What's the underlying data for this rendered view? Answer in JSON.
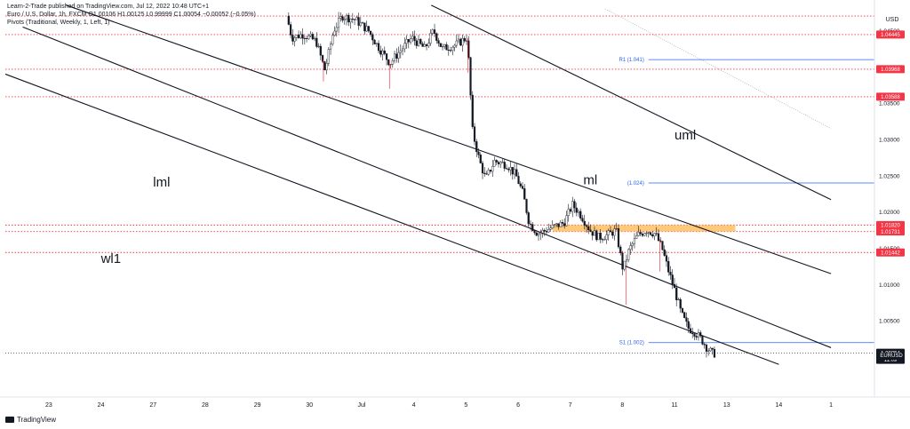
{
  "header": {
    "publish_line": "Learn-2-Trade published on TradingView.com, Jul 12, 2022 10:48 UTC+1",
    "symbol_line": "Euro / U.S. Dollar, 1h, FXCM  O1.00106  H1.00125  L0.99999  C1.00054  −0.00052 (−0.05%)",
    "indicator_line": "Pivots (Traditional, Weekly, 1, Left, 1)"
  },
  "footer": {
    "brand": "TradingView"
  },
  "chart_data": {
    "type": "candlestick",
    "symbol": "EURUSD",
    "timeframe": "1h",
    "y_axis": {
      "unit": "USD",
      "range": [
        0.9945,
        1.0475
      ],
      "ticks": [
        1.045,
        1.035,
        1.03,
        1.025,
        1.02,
        1.015,
        1.01,
        1.005,
        0.9995
      ],
      "tick_labels": [
        "1.04500",
        "1.03500",
        "1.03000",
        "1.02500",
        "1.02000",
        "1.01500",
        "1.01000",
        "1.00500",
        "0.99950"
      ]
    },
    "x_axis": {
      "range": [
        -5,
        95
      ],
      "ticks": [
        {
          "t": 0,
          "label": "23"
        },
        {
          "t": 6,
          "label": "24"
        },
        {
          "t": 12,
          "label": "27"
        },
        {
          "t": 18,
          "label": "28"
        },
        {
          "t": 24,
          "label": "29"
        },
        {
          "t": 30,
          "label": "30"
        },
        {
          "t": 36,
          "label": "Jul"
        },
        {
          "t": 42,
          "label": "4"
        },
        {
          "t": 48,
          "label": "5"
        },
        {
          "t": 54,
          "label": "6"
        },
        {
          "t": 60,
          "label": "7"
        },
        {
          "t": 66,
          "label": "8"
        },
        {
          "t": 72,
          "label": "11"
        },
        {
          "t": 78,
          "label": "13"
        },
        {
          "t": 84,
          "label": "14"
        },
        {
          "t": 90,
          "label": "1"
        }
      ]
    },
    "horizontal_levels": [
      {
        "value": 1.04445,
        "label": "1.04445",
        "color": "#f23645",
        "style": "dotted"
      },
      {
        "value": 1.03968,
        "label": "1.03968",
        "color": "#f23645",
        "style": "dotted"
      },
      {
        "value": 1.03588,
        "label": "1.03588",
        "color": "#f23645",
        "style": "dotted"
      },
      {
        "value": 1.0182,
        "label": "1.01820",
        "color": "#f23645",
        "style": "dotted"
      },
      {
        "value": 1.01731,
        "label": "1.01731",
        "color": "#f23645",
        "style": "dotted"
      },
      {
        "value": 1.01442,
        "label": "1.01442",
        "color": "#f23645",
        "style": "dotted"
      },
      {
        "value": 1.047,
        "label": "",
        "color": "#f23645",
        "style": "dotted"
      }
    ],
    "pivots": [
      {
        "name": "R1 (1.041)",
        "value": 1.041
      },
      {
        "name": "(1.024)",
        "value": 1.024
      },
      {
        "name": "S1 (1.002)",
        "value": 1.002
      }
    ],
    "zone": {
      "from": 1.01731,
      "to": 1.0182,
      "t_start": 58,
      "t_end": 79,
      "color": "#ffb74d"
    },
    "pitchfork_lines": [
      {
        "label": "uml",
        "p1": {
          "t": 44,
          "v": 1.0485
        },
        "p2": {
          "t": 90,
          "v": 1.0217
        }
      },
      {
        "label": "ml",
        "p1": {
          "t": 2,
          "v": 1.0485
        },
        "p2": {
          "t": 90,
          "v": 1.0115
        }
      },
      {
        "label": "lml",
        "p1": {
          "t": -3,
          "v": 1.0455
        },
        "p2": {
          "t": 90,
          "v": 1.0013
        }
      },
      {
        "label": "wl1",
        "p1": {
          "t": -5,
          "v": 1.039
        },
        "p2": {
          "t": 84,
          "v": 0.999
        }
      }
    ],
    "faint_lines": [
      {
        "p1": {
          "t": 64,
          "v": 1.048
        },
        "p2": {
          "t": 90,
          "v": 1.0315
        }
      },
      {
        "p1": {
          "t": -5,
          "v": 1.039
        },
        "p2": {
          "t": 84,
          "v": 0.999
        }
      }
    ],
    "line_labels": [
      {
        "text": "uml",
        "t": 72,
        "v": 1.03
      },
      {
        "text": "ml",
        "t": 61.5,
        "v": 1.0238
      },
      {
        "text": "lml",
        "t": 12,
        "v": 1.0235
      },
      {
        "text": "wl1",
        "t": 6,
        "v": 1.013
      }
    ],
    "last_price": {
      "symbol": "EURUSD",
      "value": 1.00054,
      "price_label": "1.00054",
      "countdown": "11:09"
    },
    "candles_trend": [
      {
        "t": 27.6,
        "v": 1.047
      },
      {
        "t": 28.2,
        "v": 1.044
      },
      {
        "t": 29.5,
        "v": 1.0445
      },
      {
        "t": 31.0,
        "v": 1.0435
      },
      {
        "t": 32.0,
        "v": 1.0395
      },
      {
        "t": 33.0,
        "v": 1.045
      },
      {
        "t": 34.0,
        "v": 1.047
      },
      {
        "t": 35.5,
        "v": 1.0465
      },
      {
        "t": 37.0,
        "v": 1.045
      },
      {
        "t": 38.0,
        "v": 1.043
      },
      {
        "t": 39.5,
        "v": 1.0405
      },
      {
        "t": 40.5,
        "v": 1.042
      },
      {
        "t": 42.0,
        "v": 1.044
      },
      {
        "t": 43.5,
        "v": 1.0425
      },
      {
        "t": 44.5,
        "v": 1.045
      },
      {
        "t": 45.5,
        "v": 1.0425
      },
      {
        "t": 47.0,
        "v": 1.043
      },
      {
        "t": 48.3,
        "v": 1.044
      },
      {
        "t": 48.6,
        "v": 1.04
      },
      {
        "t": 48.8,
        "v": 1.035
      },
      {
        "t": 49.0,
        "v": 1.031
      },
      {
        "t": 49.8,
        "v": 1.027
      },
      {
        "t": 50.5,
        "v": 1.0245
      },
      {
        "t": 51.5,
        "v": 1.027
      },
      {
        "t": 53.0,
        "v": 1.0265
      },
      {
        "t": 54.0,
        "v": 1.025
      },
      {
        "t": 54.8,
        "v": 1.0225
      },
      {
        "t": 55.5,
        "v": 1.0185
      },
      {
        "t": 56.5,
        "v": 1.017
      },
      {
        "t": 58.0,
        "v": 1.0178
      },
      {
        "t": 59.5,
        "v": 1.0185
      },
      {
        "t": 60.5,
        "v": 1.021
      },
      {
        "t": 61.5,
        "v": 1.0195
      },
      {
        "t": 62.5,
        "v": 1.0175
      },
      {
        "t": 63.5,
        "v": 1.0165
      },
      {
        "t": 64.5,
        "v": 1.0168
      },
      {
        "t": 65.5,
        "v": 1.0175
      },
      {
        "t": 66.3,
        "v": 1.012
      },
      {
        "t": 67.0,
        "v": 1.0148
      },
      {
        "t": 68.0,
        "v": 1.0168
      },
      {
        "t": 69.0,
        "v": 1.0175
      },
      {
        "t": 70.0,
        "v": 1.017
      },
      {
        "t": 70.8,
        "v": 1.015
      },
      {
        "t": 71.5,
        "v": 1.012
      },
      {
        "t": 72.3,
        "v": 1.009
      },
      {
        "t": 73.0,
        "v": 1.006
      },
      {
        "t": 73.8,
        "v": 1.004
      },
      {
        "t": 74.5,
        "v": 1.0035
      },
      {
        "t": 75.3,
        "v": 1.0025
      },
      {
        "t": 76.0,
        "v": 1.0012
      },
      {
        "t": 76.6,
        "v": 1.0005
      }
    ]
  }
}
